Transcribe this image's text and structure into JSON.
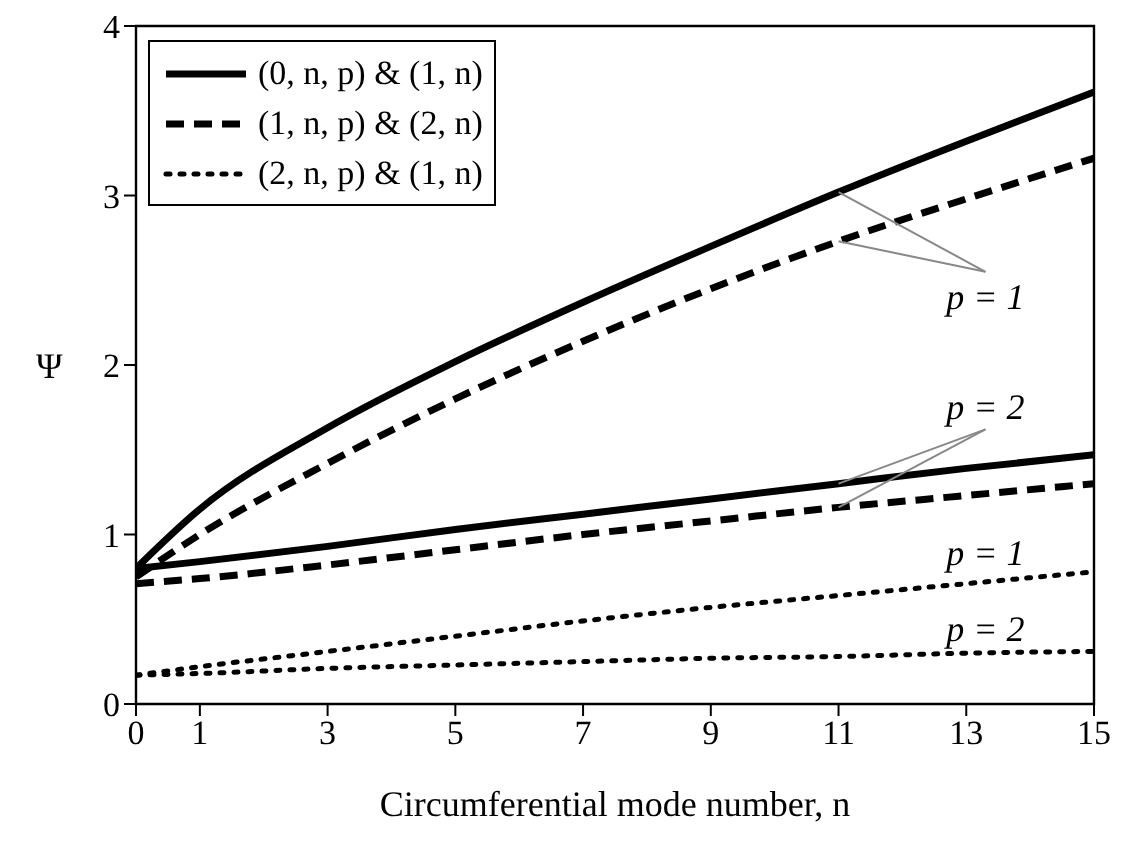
{
  "chart_data": {
    "type": "line",
    "xlabel": "Circumferential mode number, n",
    "ylabel": "Ψ",
    "x": [
      0,
      1,
      3,
      5,
      7,
      9,
      11,
      13,
      15
    ],
    "xlim": [
      0,
      15
    ],
    "xticks": [
      0,
      1,
      3,
      5,
      7,
      9,
      11,
      13,
      15
    ],
    "ylim": [
      0,
      4
    ],
    "yticks": [
      0,
      1,
      2,
      3,
      4
    ],
    "grid": false,
    "legend": "top left",
    "marker": "none",
    "series": [
      {
        "name": "(0, n, p) & (1, n)",
        "color": "#000000",
        "line_style": "solid",
        "values": [
          0.8,
          1.15,
          1.63,
          2.02,
          2.37,
          2.7,
          3.02,
          3.32,
          3.61
        ]
      },
      {
        "name": "(1, n, p) & (2, n)",
        "color": "#000000",
        "line_style": "dashed",
        "values": [
          0.75,
          1.0,
          1.42,
          1.8,
          2.14,
          2.45,
          2.73,
          2.98,
          3.22
        ]
      },
      {
        "color": "#000000",
        "line_style": "solid",
        "values": [
          0.8,
          0.84,
          0.93,
          1.03,
          1.12,
          1.21,
          1.3,
          1.39,
          1.47
        ]
      },
      {
        "color": "#000000",
        "line_style": "dashed",
        "values": [
          0.71,
          0.74,
          0.82,
          0.91,
          1.0,
          1.08,
          1.16,
          1.23,
          1.3
        ]
      },
      {
        "name": "(2, n, p) & (1, n)",
        "color": "#000000",
        "line_style": "dotted",
        "values": [
          0.17,
          0.22,
          0.31,
          0.4,
          0.49,
          0.57,
          0.64,
          0.71,
          0.78
        ]
      },
      {
        "color": "#000000",
        "line_style": "dotted",
        "values": [
          0.17,
          0.18,
          0.21,
          0.23,
          0.25,
          0.27,
          0.28,
          0.3,
          0.31
        ]
      }
    ],
    "annotations": [
      {
        "text": "p = 1",
        "x": 11,
        "y": 3.02
      },
      {
        "text": "p = 2",
        "x": 11,
        "y": 1.3
      },
      "p = 1",
      "p = 2"
    ]
  }
}
